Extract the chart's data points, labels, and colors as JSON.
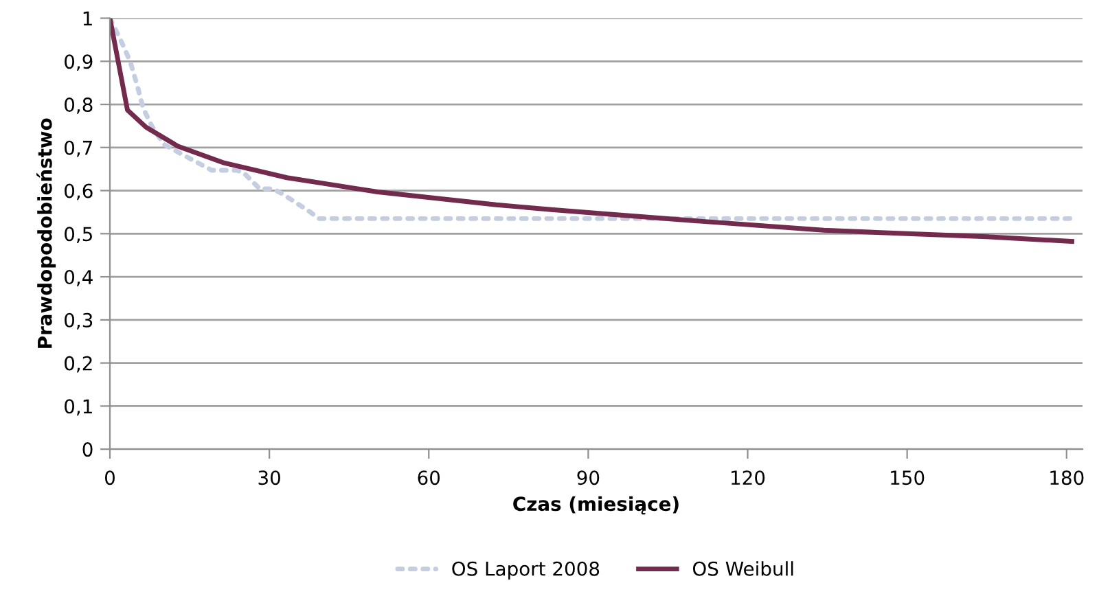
{
  "chart_data": {
    "type": "line",
    "xlabel": "Czas (miesiące)",
    "ylabel": "Prawdopodobieństwo",
    "xlim": [
      0,
      183
    ],
    "xticks": [
      0,
      30,
      60,
      90,
      120,
      150,
      180
    ],
    "ylim": [
      0,
      1
    ],
    "yticks": [
      0,
      {
        "value": 0.1,
        "label": "0,1"
      },
      {
        "value": 0.2,
        "label": "0,2"
      },
      {
        "value": 0.3,
        "label": "0,3"
      },
      {
        "value": 0.4,
        "label": "0,4"
      },
      {
        "value": 0.5,
        "label": "0,5"
      },
      {
        "value": 0.6,
        "label": "0,6"
      },
      {
        "value": 0.7,
        "label": "0,7"
      },
      {
        "value": 0.8,
        "label": "0,8"
      },
      {
        "value": 0.9,
        "label": "0,9"
      },
      1
    ],
    "grid": "y",
    "legend": "bottom",
    "marker": "none",
    "series": [
      {
        "name": "OS Laport 2008",
        "color": "#c5cde0",
        "line_style": "dotted",
        "x": [
          0,
          2,
          3.8,
          5,
          6.3,
          8,
          10.2,
          13.6,
          19.2,
          23.9,
          25.2,
          28.2,
          30.7,
          32.4,
          37.6,
          39.3,
          60,
          90,
          120,
          150,
          181
        ],
        "values": [
          1,
          0.95,
          0.9,
          0.85,
          0.79,
          0.747,
          0.707,
          0.684,
          0.647,
          0.647,
          0.641,
          0.604,
          0.604,
          0.593,
          0.551,
          0.535,
          0.535,
          0.535,
          0.535,
          0.535,
          0.535
        ]
      },
      {
        "name": "OS Weibull",
        "color": "#722b4d",
        "line_style": "solid",
        "x": [
          0,
          3.3,
          6.8,
          12.8,
          21.3,
          33.3,
          40,
          50.4,
          72.7,
          83,
          93.2,
          110,
          134.3,
          150,
          165,
          181
        ],
        "values": [
          1,
          0.787,
          0.747,
          0.703,
          0.665,
          0.63,
          0.617,
          0.597,
          0.567,
          0.556,
          0.546,
          0.53,
          0.508,
          0.5,
          0.493,
          0.482
        ]
      }
    ]
  }
}
